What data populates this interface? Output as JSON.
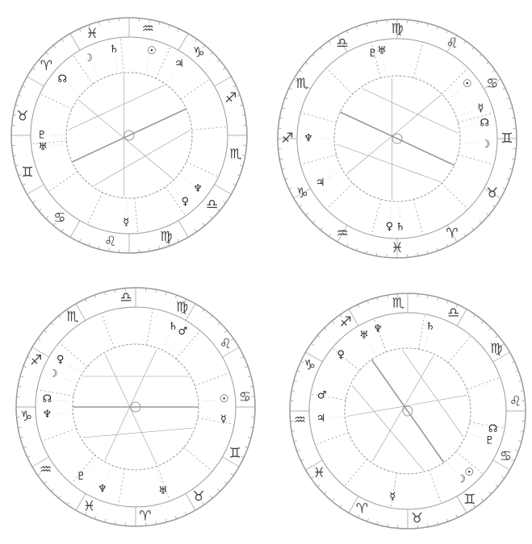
{
  "wheels": [
    {
      "signs": [
        "♒",
        "♑",
        "♐",
        "♏",
        "♎",
        "♍",
        "♌",
        "♋",
        "♊",
        "♉",
        "♈",
        "♓"
      ],
      "planets": [
        "☽",
        "☊",
        "♄",
        "☉",
        "♃",
        "♅",
        "♇",
        "♆",
        "♀",
        "☿"
      ]
    },
    {
      "signs": [
        "♍",
        "♌",
        "♋",
        "♊",
        "♉",
        "♈",
        "♓",
        "♒",
        "♑",
        "♐",
        "♏",
        "♎"
      ],
      "planets": [
        "♇",
        "♅",
        "☉",
        "☊",
        "☿",
        "☽",
        "♆",
        "♃",
        "♀",
        "♄"
      ]
    },
    {
      "signs": [
        "♎",
        "♍",
        "♌",
        "♋",
        "♊",
        "♉",
        "♈",
        "♓",
        "♒",
        "♑",
        "♐",
        "♏"
      ],
      "planets": [
        "☽",
        "♀",
        "♆",
        "☊",
        "♄",
        "☉",
        "☿",
        "♇",
        "♆",
        "♅",
        "♂"
      ]
    },
    {
      "signs": [
        "♏",
        "♎",
        "♍",
        "♌",
        "♋",
        "♊",
        "♉",
        "♈",
        "♓",
        "♒",
        "♑",
        "♐"
      ],
      "planets": [
        "♅",
        "♆",
        "♄",
        "☽",
        "☉",
        "♂",
        "♃",
        "♀",
        "☊",
        "☿",
        "♇"
      ]
    }
  ]
}
